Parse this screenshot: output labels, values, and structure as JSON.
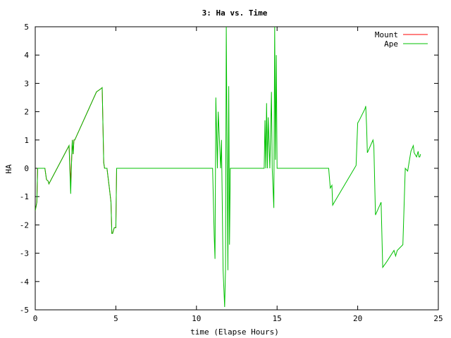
{
  "chart_data": {
    "type": "line",
    "title": "3: Ha vs. Time",
    "xlabel": "time (Elapse Hours)",
    "ylabel": "HA",
    "xlim": [
      0,
      25
    ],
    "ylim": [
      -5,
      5
    ],
    "xticks": [
      0,
      5,
      10,
      15,
      20,
      25
    ],
    "yticks": [
      -5,
      -4,
      -3,
      -2,
      -1,
      0,
      1,
      2,
      3,
      4,
      5
    ],
    "grid": false,
    "legend_position": "top-right",
    "series": [
      {
        "name": "Mount",
        "color": "#ff0000",
        "x": [
          0,
          0.1,
          0.15,
          0.6,
          0.7,
          0.8,
          0.85,
          2.1,
          2.2,
          2.25,
          2.3,
          2.35,
          2.4,
          2.45,
          3.8,
          4.05,
          4.15,
          4.25,
          4.3,
          4.45,
          4.6,
          4.7,
          4.75,
          4.8,
          4.9,
          5.0,
          5.05,
          5.1
        ],
        "values": [
          -1.5,
          -1.2,
          0.0,
          0.0,
          -0.4,
          -0.45,
          -0.55,
          0.8,
          -0.5,
          0.2,
          1.0,
          0.5,
          1.0,
          1.0,
          2.7,
          2.8,
          2.85,
          0.2,
          0.0,
          0.0,
          -0.7,
          -1.2,
          -2.3,
          -2.3,
          -2.1,
          -2.1,
          0.0,
          0.0
        ]
      },
      {
        "name": "Ape",
        "color": "#00c000",
        "x": [
          0,
          0.1,
          0.15,
          0.6,
          0.7,
          0.8,
          0.85,
          2.1,
          2.2,
          2.25,
          2.3,
          2.35,
          2.4,
          2.45,
          3.8,
          4.05,
          4.15,
          4.25,
          4.3,
          4.45,
          4.6,
          4.7,
          4.75,
          4.8,
          4.9,
          5.0,
          5.05,
          5.1,
          11.0,
          11.1,
          11.15,
          11.2,
          11.3,
          11.35,
          11.5,
          11.55,
          11.65,
          11.75,
          11.8,
          11.85,
          11.95,
          12.0,
          12.05,
          12.1,
          12.15,
          12.25,
          12.3,
          14.2,
          14.25,
          14.3,
          14.35,
          14.4,
          14.45,
          14.55,
          14.65,
          14.7,
          14.8,
          14.85,
          14.9,
          14.95,
          15.0,
          18.2,
          18.3,
          18.4,
          18.45,
          18.55,
          19.9,
          20.0,
          20.1,
          20.45,
          20.5,
          20.55,
          20.6,
          20.95,
          21.0,
          21.1,
          21.45,
          21.55,
          21.8,
          22.25,
          22.35,
          22.45,
          22.8,
          22.95,
          23.1,
          23.3,
          23.45,
          23.5,
          23.65,
          23.75,
          23.8,
          23.85,
          23.9
        ],
        "values": [
          -1.5,
          -1.2,
          0.0,
          0.0,
          -0.4,
          -0.45,
          -0.55,
          0.8,
          -0.9,
          0.2,
          1.0,
          0.5,
          1.0,
          1.0,
          2.7,
          2.8,
          2.85,
          0.2,
          0.0,
          0.0,
          -0.7,
          -1.2,
          -2.3,
          -2.3,
          -2.1,
          -2.1,
          0.0,
          0.0,
          0.0,
          -2.4,
          -3.2,
          2.5,
          0.0,
          2.0,
          0.0,
          1.0,
          -3.6,
          -4.9,
          -3.6,
          5.0,
          -3.6,
          2.9,
          -2.7,
          0.0,
          0.0,
          0.0,
          0.0,
          0.0,
          1.7,
          0.0,
          2.3,
          0.0,
          1.8,
          0.0,
          2.7,
          0.0,
          -1.4,
          5.0,
          0.3,
          4.0,
          0.0,
          0.0,
          -0.7,
          -0.6,
          -1.3,
          -1.2,
          0.1,
          1.6,
          1.7,
          2.1,
          2.2,
          1.5,
          0.55,
          1.0,
          0.8,
          -1.65,
          -1.2,
          -3.5,
          -3.3,
          -2.9,
          -3.1,
          -2.9,
          -2.7,
          0.0,
          -0.1,
          0.6,
          0.8,
          0.55,
          0.4,
          0.6,
          0.4,
          0.4,
          0.5
        ]
      }
    ]
  }
}
